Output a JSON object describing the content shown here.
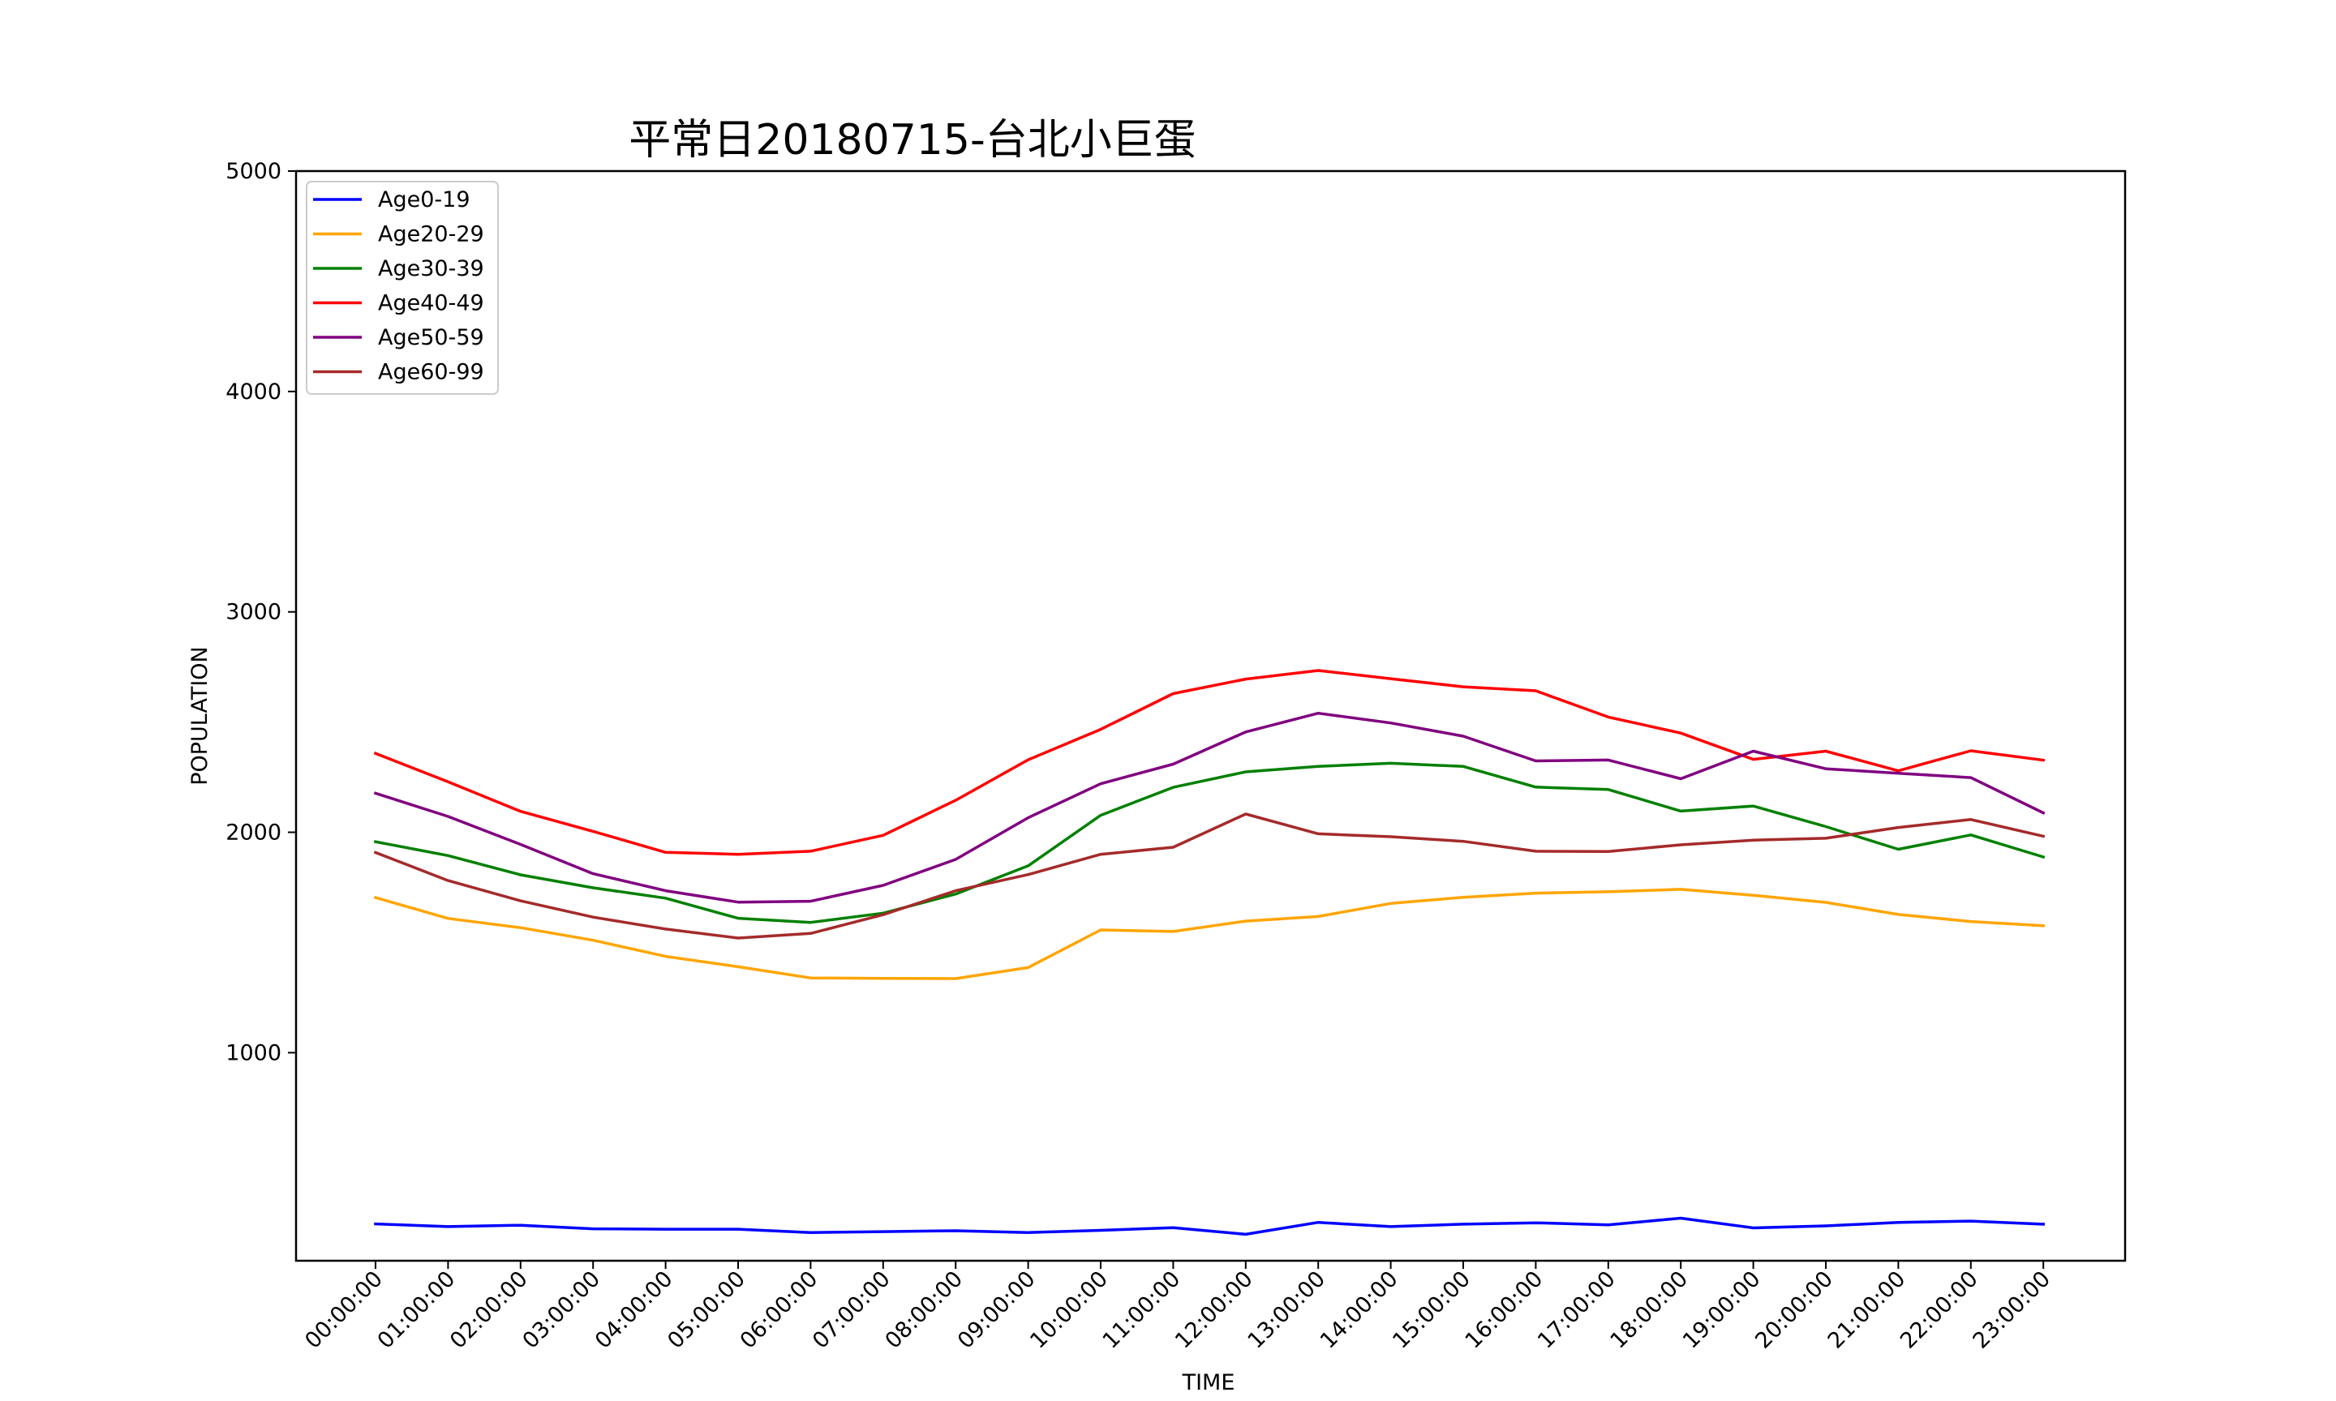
{
  "chart_data": {
    "type": "line",
    "title": "平常日20180715-台北小巨蛋",
    "xlabel": "TIME",
    "ylabel": "POPULATION",
    "ylim": [
      56,
      5000
    ],
    "yticks": [
      1000,
      2000,
      3000,
      4000,
      5000
    ],
    "grid": false,
    "legend_position": "upper-left",
    "categories": [
      "00:00:00",
      "01:00:00",
      "02:00:00",
      "03:00:00",
      "04:00:00",
      "05:00:00",
      "06:00:00",
      "07:00:00",
      "08:00:00",
      "09:00:00",
      "10:00:00",
      "11:00:00",
      "12:00:00",
      "13:00:00",
      "14:00:00",
      "15:00:00",
      "16:00:00",
      "17:00:00",
      "18:00:00",
      "19:00:00",
      "20:00:00",
      "21:00:00",
      "22:00:00",
      "23:00:00"
    ],
    "series": [
      {
        "name": "Age0-19",
        "color": "#0000ff",
        "values": [
          223,
          211,
          217,
          201,
          199,
          199,
          184,
          188,
          192,
          184,
          194,
          206,
          176,
          230,
          211,
          222,
          228,
          219,
          249,
          205,
          214,
          230,
          236,
          222
        ]
      },
      {
        "name": "Age20-29",
        "color": "#ffa500",
        "values": [
          1704,
          1609,
          1567,
          1510,
          1437,
          1390,
          1339,
          1337,
          1336,
          1386,
          1557,
          1550,
          1597,
          1618,
          1677,
          1705,
          1724,
          1730,
          1741,
          1714,
          1682,
          1627,
          1595,
          1576
        ]
      },
      {
        "name": "Age30-39",
        "color": "#008000",
        "values": [
          1957,
          1894,
          1807,
          1748,
          1701,
          1610,
          1591,
          1633,
          1720,
          1848,
          2077,
          2204,
          2274,
          2299,
          2313,
          2299,
          2205,
          2194,
          2096,
          2119,
          2026,
          1923,
          1988,
          1888
        ]
      },
      {
        "name": "Age40-49",
        "color": "#ff0000",
        "values": [
          2358,
          2229,
          2095,
          2004,
          1909,
          1900,
          1914,
          1986,
          2145,
          2329,
          2467,
          2629,
          2695,
          2734,
          2697,
          2660,
          2642,
          2523,
          2450,
          2331,
          2368,
          2279,
          2370,
          2327
        ]
      },
      {
        "name": "Age50-59",
        "color": "#800080",
        "values": [
          2177,
          2072,
          1945,
          1812,
          1735,
          1683,
          1687,
          1759,
          1877,
          2066,
          2220,
          2309,
          2455,
          2540,
          2496,
          2436,
          2324,
          2328,
          2243,
          2368,
          2288,
          2268,
          2248,
          2088
        ]
      },
      {
        "name": "Age60-99",
        "color": "#a52a2a",
        "values": [
          1908,
          1781,
          1689,
          1615,
          1561,
          1520,
          1541,
          1626,
          1735,
          1808,
          1900,
          1932,
          2083,
          1993,
          1980,
          1959,
          1914,
          1913,
          1943,
          1964,
          1973,
          2022,
          2058,
          1982
        ]
      }
    ]
  }
}
